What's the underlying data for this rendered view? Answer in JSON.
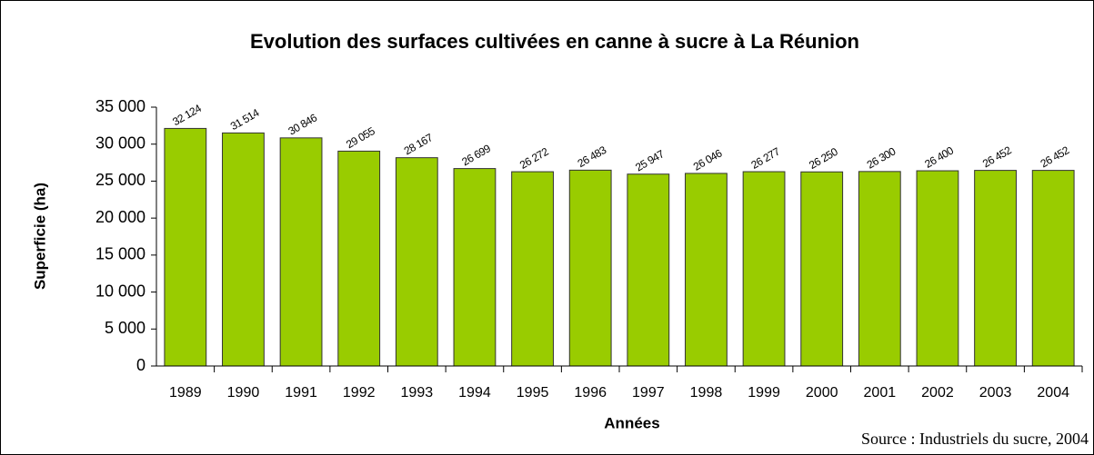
{
  "chart_data": {
    "type": "bar",
    "title": "Evolution des surfaces cultivées en canne à sucre à La Réunion",
    "x_label": "Années",
    "y_label": "Superficie (ha)",
    "source": "Source : Industriels du sucre, 2004",
    "categories": [
      "1989",
      "1990",
      "1991",
      "1992",
      "1993",
      "1994",
      "1995",
      "1996",
      "1997",
      "1998",
      "1999",
      "2000",
      "2001",
      "2002",
      "2003",
      "2004"
    ],
    "values": [
      32124,
      31514,
      30846,
      29055,
      28167,
      26699,
      26272,
      26483,
      25947,
      26046,
      26277,
      26250,
      26300,
      26400,
      26452,
      26452
    ],
    "value_labels": [
      "32 124",
      "31 514",
      "30 846",
      "29 055",
      "28 167",
      "26 699",
      "26 272",
      "26 483",
      "25 947",
      "26 046",
      "26 277",
      "26 250",
      "26 300",
      "26 400",
      "26 452",
      "26 452"
    ],
    "color": "#99cc00",
    "ylim": [
      0,
      35000
    ],
    "yticks": [
      0,
      {
        "value": 5000,
        "label": "5 000"
      },
      {
        "value": 10000,
        "label": "10 000"
      },
      {
        "value": 15000,
        "label": "15 000"
      },
      {
        "value": 20000,
        "label": "20 000"
      },
      {
        "value": 25000,
        "label": "25 000"
      },
      {
        "value": 30000,
        "label": "30 000"
      },
      {
        "value": 35000,
        "label": "35 000"
      }
    ],
    "grid": false
  }
}
